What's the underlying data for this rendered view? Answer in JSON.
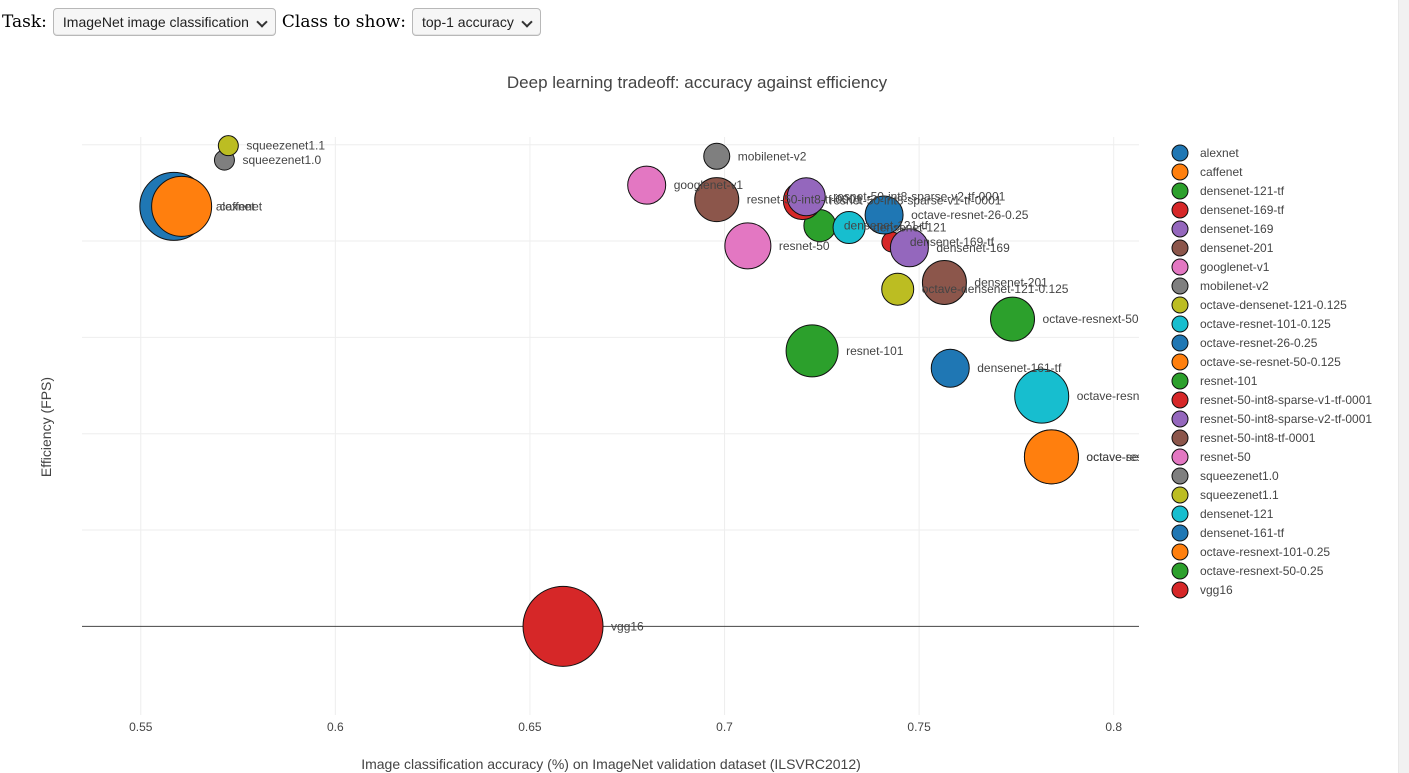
{
  "controls": {
    "task_label": "Task:",
    "task_value": "ImageNet image classification",
    "class_label": "Class to show:",
    "class_value": "top-1 accuracy"
  },
  "chart_data": {
    "type": "scatter",
    "title": "Deep learning tradeoff: accuracy against efficiency",
    "xlabel": "Image classification accuracy (%) on ImageNet validation dataset (ILSVRC2012)",
    "ylabel": "Efficiency (FPS)",
    "xlim": [
      0.5349,
      0.8065
    ],
    "ylim": [
      -0.92,
      5.08
    ],
    "xticks": [
      0.55,
      0.6,
      0.65,
      0.7,
      0.75,
      0.8
    ],
    "xtick_labels": [
      "0.55",
      "0.6",
      "0.65",
      "0.7",
      "0.75",
      "0.8"
    ],
    "yticks": [
      0,
      1,
      2,
      3,
      4,
      5
    ],
    "ytick_labels": [
      "",
      "",
      "",
      "",
      "",
      ""
    ],
    "legend_position": "right",
    "series": [
      {
        "name": "alexnet",
        "color": "#1f77b4",
        "x": 0.5585,
        "y": 4.36,
        "size": 34,
        "label": "alexnet"
      },
      {
        "name": "caffenet",
        "color": "#ff7f0e",
        "x": 0.5605,
        "y": 4.36,
        "size": 30,
        "label": "caffenet"
      },
      {
        "name": "densenet-121-tf",
        "color": "#2ca02c",
        "x": 0.7245,
        "y": 4.16,
        "size": 16,
        "label": "densenet-121-tf"
      },
      {
        "name": "densenet-169-tf",
        "color": "#d62728",
        "x": 0.743,
        "y": 3.99,
        "size": 10,
        "label": "densenet-169-tf"
      },
      {
        "name": "densenet-169",
        "color": "#9467bd",
        "x": 0.7475,
        "y": 3.93,
        "size": 19,
        "label": "densenet-169"
      },
      {
        "name": "densenet-201",
        "color": "#8c564b",
        "x": 0.7565,
        "y": 3.57,
        "size": 22,
        "label": "densenet-201"
      },
      {
        "name": "googlenet-v1",
        "color": "#e377c2",
        "x": 0.68,
        "y": 4.58,
        "size": 19,
        "label": "googlenet-v1"
      },
      {
        "name": "mobilenet-v2",
        "color": "#7f7f7f",
        "x": 0.698,
        "y": 4.88,
        "size": 13,
        "label": "mobilenet-v2"
      },
      {
        "name": "octave-densenet-121-0.125",
        "color": "#bcbd22",
        "x": 0.7445,
        "y": 3.5,
        "size": 16,
        "label": "octave-densenet-121-0.125"
      },
      {
        "name": "octave-resnet-101-0.125",
        "color": "#17becf",
        "x": 0.7815,
        "y": 2.39,
        "size": 27,
        "label": "octave-resnet-101-0.125"
      },
      {
        "name": "octave-resnet-26-0.25",
        "color": "#1f77b4",
        "x": 0.741,
        "y": 4.27,
        "size": 19,
        "label": "octave-resnet-26-0.25"
      },
      {
        "name": "octave-se-resnet-50-0.125",
        "color": "#ff7f0e",
        "x": 0.784,
        "y": 1.76,
        "size": 27,
        "label": "octave-se-resnet-50-0.125"
      },
      {
        "name": "resnet-101",
        "color": "#2ca02c",
        "x": 0.7225,
        "y": 2.86,
        "size": 26,
        "label": "resnet-101"
      },
      {
        "name": "resnet-50-int8-sparse-v1-tf-0001",
        "color": "#d62728",
        "x": 0.72,
        "y": 4.42,
        "size": 19,
        "label": "resnet-50-int8-sparse-v1-tf-0001"
      },
      {
        "name": "resnet-50-int8-sparse-v2-tf-0001",
        "color": "#9467bd",
        "x": 0.721,
        "y": 4.46,
        "size": 19,
        "label": "resnet-50-int8-sparse-v2-tf-0001"
      },
      {
        "name": "resnet-50-int8-tf-0001",
        "color": "#8c564b",
        "x": 0.698,
        "y": 4.43,
        "size": 22,
        "label": "resnet-50-int8-tf-0001"
      },
      {
        "name": "resnet-50",
        "color": "#e377c2",
        "x": 0.706,
        "y": 3.95,
        "size": 23,
        "label": "resnet-50"
      },
      {
        "name": "squeezenet1.0",
        "color": "#7f7f7f",
        "x": 0.5715,
        "y": 4.84,
        "size": 10,
        "label": "squeezenet1.0"
      },
      {
        "name": "squeezenet1.1",
        "color": "#bcbd22",
        "x": 0.5725,
        "y": 4.99,
        "size": 10,
        "label": "squeezenet1.1"
      },
      {
        "name": "densenet-121",
        "color": "#17becf",
        "x": 0.732,
        "y": 4.14,
        "size": 16,
        "label": "densenet-121"
      },
      {
        "name": "densenet-161-tf",
        "color": "#1f77b4",
        "x": 0.758,
        "y": 2.68,
        "size": 19,
        "label": "densenet-161-tf"
      },
      {
        "name": "octave-resnext-101-0.25",
        "color": "#ff7f0e",
        "x": 0.784,
        "y": 1.76,
        "size": 27,
        "label": "octave-resnext-101-0.25"
      },
      {
        "name": "octave-resnext-50-0.25",
        "color": "#2ca02c",
        "x": 0.774,
        "y": 3.19,
        "size": 22,
        "label": "octave-resnext-50-0.25"
      },
      {
        "name": "vgg16",
        "color": "#d62728",
        "x": 0.6585,
        "y": 0.0,
        "size": 40,
        "label": "vgg16"
      }
    ]
  }
}
